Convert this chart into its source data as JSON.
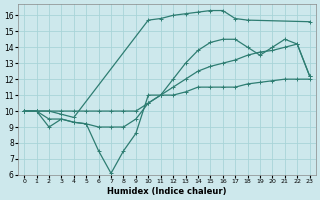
{
  "xlabel": "Humidex (Indice chaleur)",
  "xlim": [
    -0.5,
    23.5
  ],
  "ylim": [
    6,
    16.7
  ],
  "xticks": [
    0,
    1,
    2,
    3,
    4,
    5,
    6,
    7,
    8,
    9,
    10,
    11,
    12,
    13,
    14,
    15,
    16,
    17,
    18,
    19,
    20,
    21,
    22,
    23
  ],
  "yticks": [
    6,
    7,
    8,
    9,
    10,
    11,
    12,
    13,
    14,
    15,
    16
  ],
  "bg_color": "#cde8ec",
  "grid_color": "#a8d4d8",
  "line_color": "#2e7d72",
  "series": [
    {
      "x": [
        0,
        1,
        2,
        3,
        4,
        5,
        6,
        7,
        8,
        9,
        10,
        11,
        12,
        13,
        14,
        15,
        16,
        17,
        18,
        19,
        20,
        21,
        22,
        23
      ],
      "y": [
        10,
        10,
        10,
        10,
        10,
        10,
        10,
        10,
        10,
        10,
        10.5,
        11,
        11,
        11.2,
        11.5,
        11.5,
        11.5,
        11.5,
        11.7,
        11.8,
        11.9,
        12,
        12,
        12
      ]
    },
    {
      "x": [
        0,
        1,
        2,
        3,
        4,
        5,
        6,
        7,
        8,
        9,
        10,
        11,
        12,
        13,
        14,
        15,
        16,
        17,
        18,
        19,
        20,
        21,
        22,
        23
      ],
      "y": [
        10,
        10,
        9,
        9.5,
        9.3,
        9.2,
        7.5,
        6.1,
        7.5,
        8.6,
        11.0,
        11.0,
        12.0,
        13.0,
        13.8,
        14.3,
        14.5,
        14.5,
        14.0,
        13.5,
        14.0,
        14.5,
        14.2,
        12.2
      ]
    },
    {
      "x": [
        0,
        1,
        2,
        3,
        4,
        10,
        11,
        12,
        13,
        14,
        15,
        16,
        17,
        18,
        23
      ],
      "y": [
        10,
        10,
        10,
        9.8,
        9.6,
        15.7,
        15.8,
        16.0,
        16.1,
        16.2,
        16.3,
        16.3,
        15.8,
        15.7,
        15.6
      ]
    },
    {
      "x": [
        0,
        1,
        2,
        3,
        4,
        5,
        6,
        7,
        8,
        9,
        10,
        11,
        12,
        13,
        14,
        15,
        16,
        17,
        18,
        19,
        20,
        21,
        22,
        23
      ],
      "y": [
        10,
        10,
        9.5,
        9.5,
        9.3,
        9.2,
        9.0,
        9.0,
        9.0,
        9.5,
        10.5,
        11.0,
        11.5,
        12.0,
        12.5,
        12.8,
        13.0,
        13.2,
        13.5,
        13.7,
        13.8,
        14.0,
        14.2,
        12.2
      ]
    }
  ]
}
